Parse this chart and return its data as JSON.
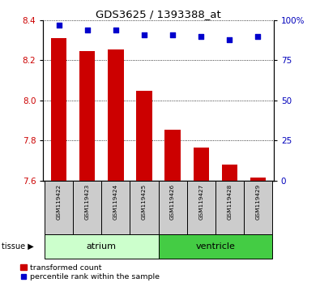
{
  "title": "GDS3625 / 1393388_at",
  "samples": [
    "GSM119422",
    "GSM119423",
    "GSM119424",
    "GSM119425",
    "GSM119426",
    "GSM119427",
    "GSM119428",
    "GSM119429"
  ],
  "bar_values": [
    8.31,
    8.245,
    8.255,
    8.05,
    7.855,
    7.765,
    7.68,
    7.615
  ],
  "percentile_values": [
    97,
    94,
    94,
    91,
    91,
    90,
    88,
    90
  ],
  "ylim_left": [
    7.6,
    8.4
  ],
  "ylim_right": [
    0,
    100
  ],
  "yticks_left": [
    7.6,
    7.8,
    8.0,
    8.2,
    8.4
  ],
  "yticks_right": [
    0,
    25,
    50,
    75,
    100
  ],
  "ytick_labels_right": [
    "0",
    "25",
    "50",
    "75",
    "100%"
  ],
  "bar_color": "#cc0000",
  "scatter_color": "#0000cc",
  "bar_width": 0.55,
  "atrium_color": "#ccffcc",
  "ventricle_color": "#44cc44",
  "sample_box_color": "#cccccc",
  "tissue_label": "tissue",
  "legend_bar_label": "transformed count",
  "legend_scatter_label": "percentile rank within the sample",
  "tick_label_color_left": "#cc0000",
  "tick_label_color_right": "#0000bb"
}
